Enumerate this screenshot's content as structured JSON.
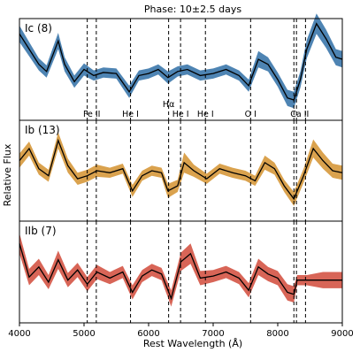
{
  "chart_data": {
    "type": "line",
    "title": "Phase: 10±2.5 days",
    "xlabel": "Rest Wavelength (Å)",
    "ylabel": "Relative Flux",
    "xlim": [
      4000,
      9000
    ],
    "x_ticks": [
      4000,
      5000,
      6000,
      7000,
      8000,
      9000
    ],
    "grid": false,
    "line_ids": [
      {
        "label": "Fe II",
        "wavelengths": [
          5050,
          5190
        ]
      },
      {
        "label": "He I",
        "wavelengths": [
          5720
        ]
      },
      {
        "label": "Hα",
        "wavelengths": [
          6310
        ]
      },
      {
        "label": "He I",
        "wavelengths": [
          6495
        ]
      },
      {
        "label": "He I",
        "wavelengths": [
          6880
        ]
      },
      {
        "label": "O I",
        "wavelengths": [
          7580
        ]
      },
      {
        "label": "Ca II",
        "wavelengths": [
          8250,
          8290,
          8430
        ]
      }
    ],
    "panels": [
      {
        "label": "Ic (8)",
        "band_color": "#2f6ea6",
        "mean_color": "#000000",
        "wavelength": [
          4000,
          4150,
          4300,
          4420,
          4600,
          4700,
          4850,
          5000,
          5150,
          5300,
          5500,
          5700,
          5850,
          6000,
          6150,
          6300,
          6450,
          6600,
          6800,
          7000,
          7200,
          7400,
          7550,
          7700,
          7850,
          8000,
          8150,
          8250,
          8350,
          8450,
          8600,
          8750,
          8900,
          9000
        ],
        "mean": [
          0.85,
          0.7,
          0.55,
          0.48,
          0.78,
          0.55,
          0.38,
          0.5,
          0.44,
          0.47,
          0.46,
          0.28,
          0.44,
          0.46,
          0.5,
          0.42,
          0.48,
          0.5,
          0.44,
          0.46,
          0.5,
          0.44,
          0.34,
          0.6,
          0.55,
          0.4,
          0.22,
          0.2,
          0.4,
          0.7,
          0.95,
          0.8,
          0.62,
          0.6
        ],
        "spread": [
          0.08,
          0.07,
          0.06,
          0.06,
          0.08,
          0.07,
          0.06,
          0.06,
          0.05,
          0.05,
          0.05,
          0.06,
          0.05,
          0.05,
          0.05,
          0.06,
          0.05,
          0.05,
          0.05,
          0.05,
          0.05,
          0.05,
          0.06,
          0.08,
          0.07,
          0.07,
          0.08,
          0.08,
          0.08,
          0.09,
          0.1,
          0.09,
          0.08,
          0.08
        ]
      },
      {
        "label": "Ib (13)",
        "band_color": "#d4922f",
        "mean_color": "#000000",
        "wavelength": [
          4000,
          4150,
          4300,
          4450,
          4600,
          4750,
          4900,
          5050,
          5200,
          5400,
          5600,
          5750,
          5900,
          6050,
          6200,
          6300,
          6450,
          6550,
          6700,
          6900,
          7100,
          7300,
          7500,
          7650,
          7800,
          7950,
          8100,
          8250,
          8400,
          8550,
          8700,
          8850,
          9000
        ],
        "mean": [
          0.6,
          0.72,
          0.52,
          0.45,
          0.8,
          0.55,
          0.42,
          0.45,
          0.5,
          0.48,
          0.52,
          0.3,
          0.45,
          0.5,
          0.48,
          0.3,
          0.35,
          0.58,
          0.5,
          0.42,
          0.52,
          0.48,
          0.45,
          0.4,
          0.58,
          0.52,
          0.35,
          0.22,
          0.45,
          0.72,
          0.6,
          0.5,
          0.48
        ],
        "spread": [
          0.07,
          0.07,
          0.06,
          0.06,
          0.08,
          0.07,
          0.06,
          0.06,
          0.06,
          0.05,
          0.05,
          0.06,
          0.05,
          0.05,
          0.05,
          0.07,
          0.06,
          0.1,
          0.06,
          0.05,
          0.05,
          0.05,
          0.05,
          0.05,
          0.07,
          0.06,
          0.06,
          0.07,
          0.07,
          0.09,
          0.08,
          0.07,
          0.07
        ]
      },
      {
        "label": "IIb (7)",
        "band_color": "#d14a3a",
        "mean_color": "#000000",
        "wavelength": [
          4000,
          4150,
          4300,
          4450,
          4600,
          4750,
          4900,
          5050,
          5200,
          5400,
          5600,
          5750,
          5900,
          6050,
          6200,
          6350,
          6500,
          6650,
          6800,
          7000,
          7200,
          7400,
          7550,
          7700,
          7850,
          8000,
          8150,
          8250,
          8300,
          8450,
          8700,
          9000
        ],
        "mean": [
          0.78,
          0.45,
          0.55,
          0.4,
          0.62,
          0.42,
          0.52,
          0.38,
          0.5,
          0.44,
          0.5,
          0.3,
          0.46,
          0.52,
          0.48,
          0.24,
          0.6,
          0.68,
          0.44,
          0.46,
          0.5,
          0.44,
          0.32,
          0.55,
          0.48,
          0.44,
          0.3,
          0.28,
          0.42,
          0.42,
          0.42,
          0.42
        ],
        "spread": [
          0.1,
          0.08,
          0.08,
          0.07,
          0.09,
          0.07,
          0.07,
          0.07,
          0.07,
          0.06,
          0.06,
          0.07,
          0.06,
          0.06,
          0.06,
          0.08,
          0.09,
          0.1,
          0.07,
          0.06,
          0.06,
          0.06,
          0.07,
          0.08,
          0.07,
          0.07,
          0.08,
          0.08,
          0.05,
          0.05,
          0.08,
          0.08
        ]
      }
    ]
  }
}
